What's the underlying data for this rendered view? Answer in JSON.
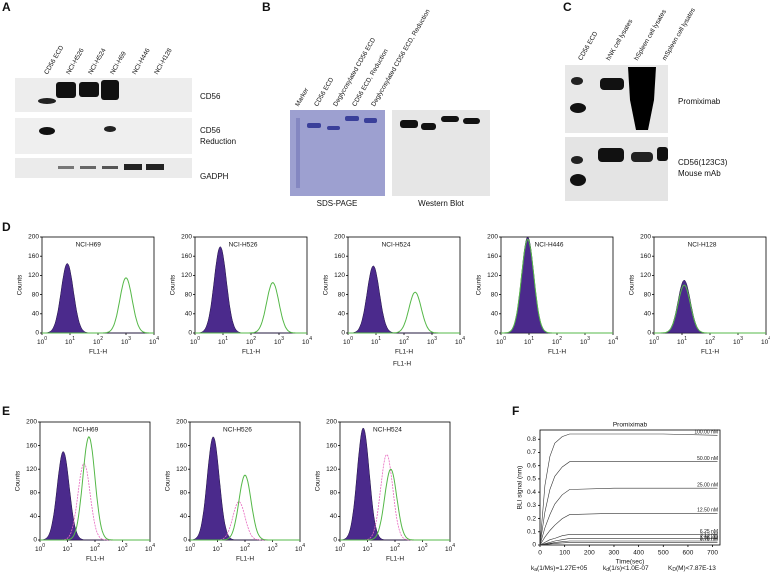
{
  "panel_labels": [
    "A",
    "B",
    "C",
    "D",
    "E",
    "F"
  ],
  "panel_a": {
    "lanes": [
      "CD56 ECD",
      "NCI-H526",
      "NCI-H524",
      "NCI-H69",
      "NCI-H446",
      "NCI-H128"
    ],
    "rows": [
      [
        "CD56"
      ],
      [
        "CD56",
        "Reduction"
      ],
      [
        "GADPH"
      ]
    ]
  },
  "panel_b": {
    "lanes": [
      "Marker",
      "CD56 ECD",
      "Deglycosylated CD56 ECD",
      "CD56 ECD, Reduction",
      "Deglycosylated CD56 ECD, Reduction"
    ],
    "captions": [
      "SDS-PAGE",
      "Western Blot"
    ]
  },
  "panel_c": {
    "lanes": [
      "CD56 ECD",
      "hNK cell lysates",
      "hSpleen cell lysates",
      "mSpleen cell lysates"
    ],
    "rows": [
      [
        "Promiximab"
      ],
      [
        "CD56(123C3)",
        "Mouse mAb"
      ]
    ]
  },
  "flow_axes": {
    "ylabel": "Counts",
    "xlabel": "FL1-H",
    "ylim": [
      0,
      200
    ],
    "yticks": [
      0,
      40,
      80,
      120,
      160,
      200
    ],
    "xlim": [
      1,
      10000
    ],
    "xticks": [
      {
        "value": 1,
        "label": "10",
        "exp": "0"
      },
      {
        "value": 10,
        "label": "10",
        "exp": "1"
      },
      {
        "value": 100,
        "label": "10",
        "exp": "2"
      },
      {
        "value": 1000,
        "label": "10",
        "exp": "3"
      },
      {
        "value": 10000,
        "label": "10",
        "exp": "4"
      }
    ]
  },
  "panel_d": {
    "plots": [
      {
        "title": "NCI-H69",
        "isotype": {
          "center": 8,
          "peak": 145
        },
        "stain": {
          "center": 1000,
          "peak": 115
        }
      },
      {
        "title": "NCI-H526",
        "isotype": {
          "center": 8,
          "peak": 180
        },
        "stain": {
          "center": 600,
          "peak": 105
        }
      },
      {
        "title": "NCI-H524",
        "isotype": {
          "center": 8,
          "peak": 140
        },
        "stain": {
          "center": 250,
          "peak": 85
        }
      },
      {
        "title": "NCI-H446",
        "isotype": {
          "center": 9,
          "peak": 200
        },
        "stain": {
          "center": 9,
          "peak": 195
        }
      },
      {
        "title": "NCI-H128",
        "isotype": {
          "center": 12,
          "peak": 110
        },
        "stain": {
          "center": 12,
          "peak": 100
        }
      }
    ],
    "note": "FL1-H"
  },
  "panel_e": {
    "plots": [
      {
        "title": "NCI-H69",
        "isotype": {
          "center": 7,
          "peak": 150
        },
        "control": {
          "center": 40,
          "peak": 130
        },
        "stain": {
          "center": 60,
          "peak": 175
        }
      },
      {
        "title": "NCI-H526",
        "isotype": {
          "center": 7,
          "peak": 175
        },
        "control": {
          "center": 60,
          "peak": 65
        },
        "stain": {
          "center": 100,
          "peak": 110
        }
      },
      {
        "title": "NCI-H524",
        "isotype": {
          "center": 7,
          "peak": 190
        },
        "control": {
          "center": 50,
          "peak": 145
        },
        "stain": {
          "center": 70,
          "peak": 120
        }
      }
    ]
  },
  "panel_f": {
    "type": "line",
    "title": "Promiximab",
    "ylabel": "BLI signal (nm)",
    "xlabel": "Time(sec)",
    "color": "#333333",
    "xlim": [
      0,
      730
    ],
    "xticks": [
      0,
      100,
      200,
      300,
      400,
      500,
      600,
      700
    ],
    "ylim": [
      0,
      0.87
    ],
    "yticks": [
      0,
      0.1,
      0.2,
      0.3,
      0.4,
      0.5,
      0.6,
      0.7,
      0.8
    ],
    "x": [
      0,
      20,
      40,
      60,
      90,
      120,
      300,
      500,
      720
    ],
    "series": [
      {
        "name": "100.00 nM",
        "values": [
          0,
          0.45,
          0.67,
          0.77,
          0.82,
          0.84,
          0.84,
          0.84,
          0.83
        ]
      },
      {
        "name": "50.00 nM",
        "values": [
          0,
          0.25,
          0.42,
          0.52,
          0.59,
          0.63,
          0.63,
          0.63,
          0.63
        ]
      },
      {
        "name": "25.00 nM",
        "values": [
          0,
          0.13,
          0.23,
          0.31,
          0.38,
          0.42,
          0.43,
          0.43,
          0.43
        ]
      },
      {
        "name": "12.50 nM",
        "values": [
          0,
          0.06,
          0.11,
          0.15,
          0.2,
          0.23,
          0.24,
          0.24,
          0.24
        ]
      },
      {
        "name": "6.25 nM",
        "values": [
          0,
          0.02,
          0.04,
          0.05,
          0.07,
          0.08,
          0.08,
          0.08,
          0.08
        ]
      },
      {
        "name": "3.13 nM",
        "values": [
          0,
          0.01,
          0.02,
          0.03,
          0.04,
          0.05,
          0.05,
          0.05,
          0.05
        ]
      },
      {
        "name": "1.56 nM",
        "values": [
          0,
          0.006,
          0.012,
          0.018,
          0.025,
          0.03,
          0.03,
          0.03,
          0.03
        ]
      },
      {
        "name": "0.78 nM",
        "values": [
          0,
          0.004,
          0.008,
          0.012,
          0.016,
          0.02,
          0.02,
          0.02,
          0.02
        ]
      }
    ],
    "kinetics": [
      {
        "symbol": "k",
        "sub": "a",
        "text": "(1/Ms)=1.27E+05"
      },
      {
        "symbol": "k",
        "sub": "d",
        "text": "(1/s)<1.0E-07"
      },
      {
        "symbol": "K",
        "sub": "D",
        "text": "(M)<7.87E-13"
      }
    ]
  }
}
